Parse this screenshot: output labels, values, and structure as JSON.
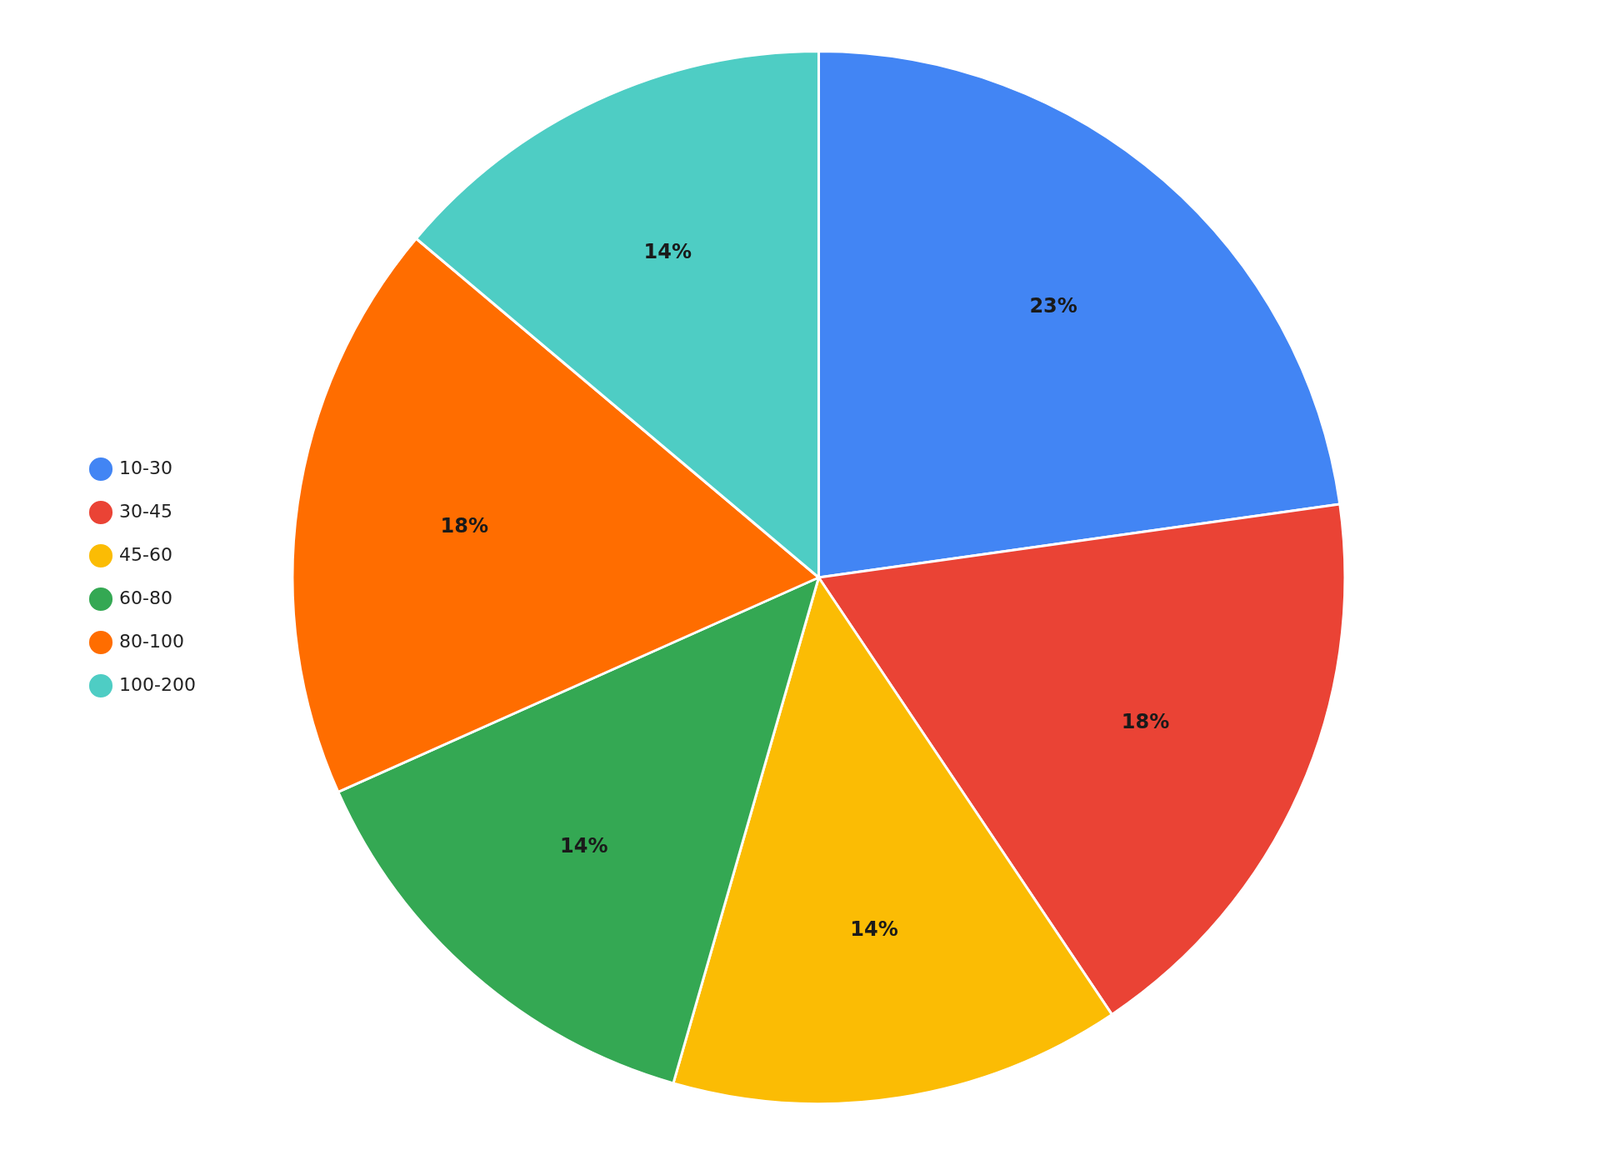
{
  "chart_data": {
    "type": "pie",
    "categories": [
      "10-30",
      "30-45",
      "45-60",
      "60-80",
      "80-100",
      "100-200"
    ],
    "values": [
      23,
      18,
      14,
      14,
      18,
      14
    ],
    "value_labels": [
      "23%",
      "18%",
      "14%",
      "14%",
      "18%",
      "14%"
    ],
    "colors": [
      "#4285F4",
      "#EA4335",
      "#FBBC04",
      "#34A853",
      "#FF6D00",
      "#4ECDC4"
    ],
    "data_labels": true,
    "legend": "left"
  }
}
